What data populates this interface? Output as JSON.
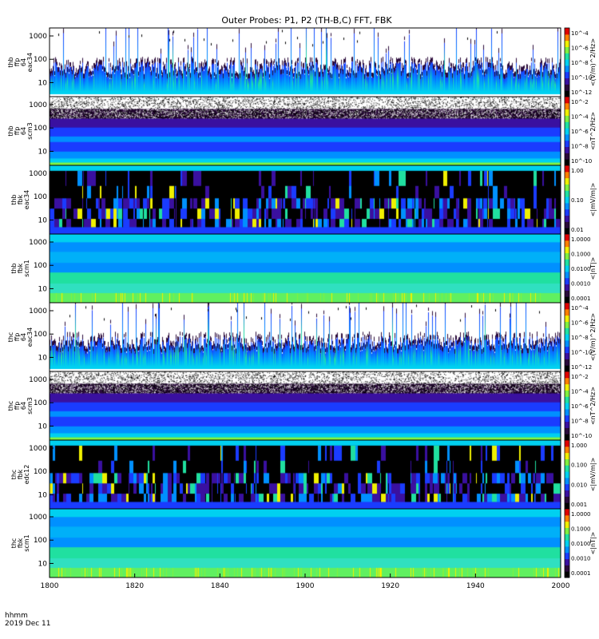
{
  "chart_data": {
    "type": "heatmap",
    "title": "Outer Probes: P1, P2 (TH-B,C) FFT, FBK",
    "xlabel_lines": [
      "hhmm",
      "2019 Dec 11"
    ],
    "x_ticks": [
      "1800",
      "1820",
      "1840",
      "1900",
      "1920",
      "1940",
      "2000"
    ],
    "x_range": [
      "1800",
      "2000"
    ],
    "panels": [
      {
        "id": "thb_ffp_eac34",
        "ylabel_lines": [
          "thb",
          "ffp",
          "64",
          "eac34"
        ],
        "y_scale": "log",
        "y_ticks": [
          "10",
          "100",
          "1000"
        ],
        "cbar_label": "<(V/m)^2/Hz>",
        "cbar_ticks": [
          "10^-4",
          "10^-6",
          "10^-8",
          "10^-10",
          "10^-12"
        ],
        "pattern": "spiky"
      },
      {
        "id": "thb_ffp_scm3",
        "ylabel_lines": [
          "thb",
          "ffp",
          "64",
          "scm3"
        ],
        "y_scale": "log",
        "y_ticks": [
          "10",
          "100",
          "1000"
        ],
        "cbar_label": "<nT^2/Hz>",
        "cbar_ticks": [
          "10^-2",
          "10^-4",
          "10^-6",
          "10^-8",
          "10^-10"
        ],
        "pattern": "banded"
      },
      {
        "id": "thb_fbk_eac34",
        "ylabel_lines": [
          "thb",
          "fbk",
          "eac34"
        ],
        "y_scale": "log",
        "y_ticks": [
          "10",
          "100",
          "1000"
        ],
        "cbar_label": "<|mV/m|>",
        "cbar_ticks": [
          "1.00",
          "0.10",
          "0.01"
        ],
        "pattern": "blocky"
      },
      {
        "id": "thb_fbk_scm1",
        "ylabel_lines": [
          "thb",
          "fbk",
          "scm1"
        ],
        "y_scale": "log",
        "y_ticks": [
          "10",
          "100",
          "1000"
        ],
        "cbar_label": "<|nT|>",
        "cbar_ticks": [
          "1.0000",
          "0.1000",
          "0.0100",
          "0.0010",
          "0.0001"
        ],
        "pattern": "bands"
      },
      {
        "id": "thc_ffp_eac34",
        "ylabel_lines": [
          "thc",
          "ffp",
          "64",
          "eac34"
        ],
        "y_scale": "log",
        "y_ticks": [
          "10",
          "100",
          "1000"
        ],
        "cbar_label": "<(V/m)^2/Hz>",
        "cbar_ticks": [
          "10^-4",
          "10^-6",
          "10^-8",
          "10^-10",
          "10^-12"
        ],
        "pattern": "spiky"
      },
      {
        "id": "thc_ffp_scm3",
        "ylabel_lines": [
          "thc",
          "ffp",
          "64",
          "scm3"
        ],
        "y_scale": "log",
        "y_ticks": [
          "10",
          "100",
          "1000"
        ],
        "cbar_label": "<nT^2/Hz>",
        "cbar_ticks": [
          "10^-2",
          "10^-4",
          "10^-6",
          "10^-8",
          "10^-10"
        ],
        "pattern": "banded"
      },
      {
        "id": "thc_fbk_edc12",
        "ylabel_lines": [
          "thc",
          "fbk",
          "edc12"
        ],
        "y_scale": "log",
        "y_ticks": [
          "10",
          "100",
          "1000"
        ],
        "cbar_label": "<|mV/m|>",
        "cbar_ticks": [
          "1.000",
          "0.100",
          "0.010",
          "0.001"
        ],
        "pattern": "blocky"
      },
      {
        "id": "thc_fbk_scm1",
        "ylabel_lines": [
          "thc",
          "fbk",
          "scm1"
        ],
        "y_scale": "log",
        "y_ticks": [
          "10",
          "100",
          "1000"
        ],
        "cbar_label": "<|nT|>",
        "cbar_ticks": [
          "1.0000",
          "0.1000",
          "0.0100",
          "0.0010",
          "0.0001"
        ],
        "pattern": "bands"
      }
    ],
    "colormap": [
      "#000000",
      "#2a0a3a",
      "#3a10a0",
      "#1a3cff",
      "#0090ff",
      "#00d0f0",
      "#20e0a0",
      "#80f040",
      "#f0f000",
      "#ff8000",
      "#e00000"
    ]
  }
}
